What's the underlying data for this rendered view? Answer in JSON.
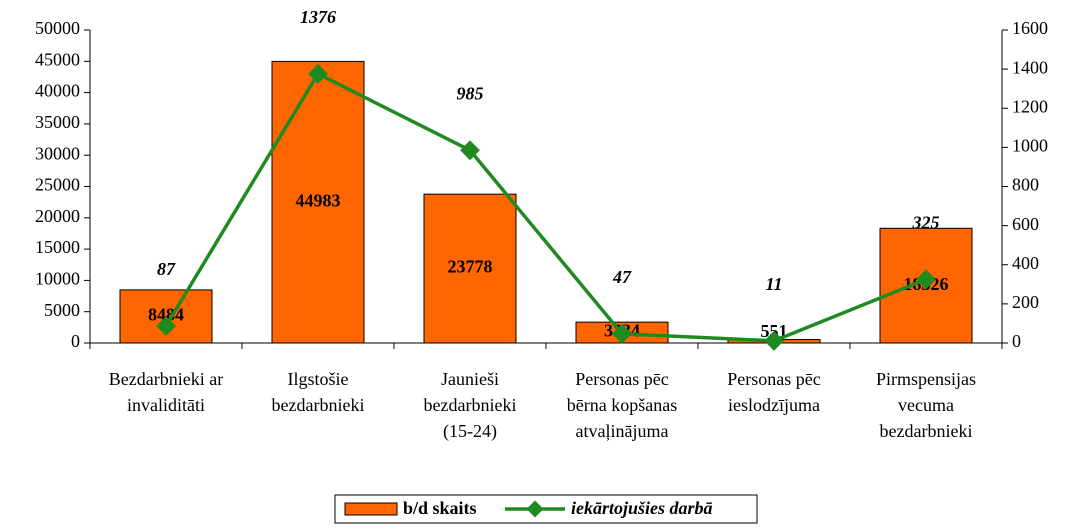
{
  "chart_data": {
    "type": "bar_line",
    "categories": [
      "Bezdarbnieki ar\ninvaliditāti",
      "Ilgstošie\nbezdarbnieki",
      "Jaunieši\nbezdarbnieki\n(15-24)",
      "Personas pēc\nbērna kopšanas\natvaļinājuma",
      "Personas pēc\nieslodzījuma",
      "Pirmspensijas\nvecuma\nbezdarbnieki"
    ],
    "series": [
      {
        "name": "b/d skaits",
        "type": "bar",
        "color": "#ff6600",
        "values": [
          8484,
          44983,
          23778,
          3334,
          551,
          18326
        ]
      },
      {
        "name": "iekārtojušies darbā",
        "type": "line",
        "axis": "y2",
        "color": "#1f8a1f",
        "values": [
          87,
          1376,
          985,
          47,
          11,
          325
        ]
      }
    ],
    "ylim": [
      0,
      50000
    ],
    "yticks": [
      0,
      5000,
      10000,
      15000,
      20000,
      25000,
      30000,
      35000,
      40000,
      45000,
      50000
    ],
    "y2lim": [
      0,
      1600
    ],
    "y2ticks": [
      0,
      200,
      400,
      600,
      800,
      1000,
      1200,
      1400,
      1600
    ],
    "legend": "bottom"
  }
}
